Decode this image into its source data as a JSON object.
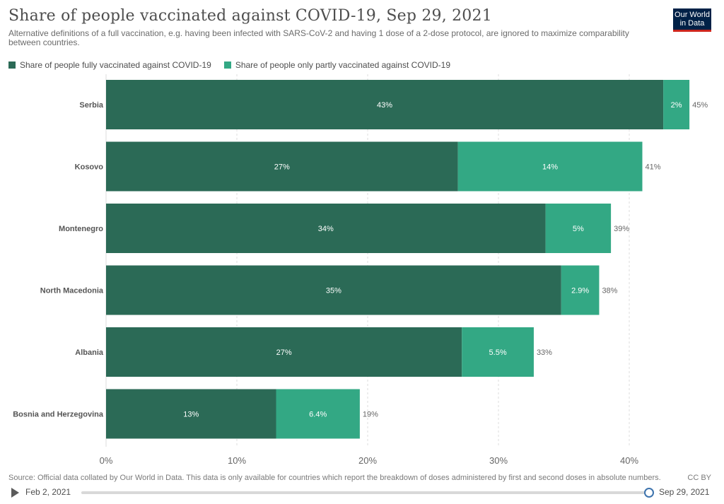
{
  "header": {
    "title": "Share of people vaccinated against COVID-19, Sep 29, 2021",
    "subtitle": "Alternative definitions of a full vaccination, e.g. having been infected with SARS-CoV-2 and having 1 dose of a 2-dose protocol, are ignored to maximize comparability between countries.",
    "logo_line1": "Our World",
    "logo_line2": "in Data"
  },
  "colors": {
    "fully": "#2b6a56",
    "partly": "#33a884",
    "grid": "#dddddd",
    "logo_bg": "#002147",
    "logo_accent": "#ce261e"
  },
  "chart_data": {
    "type": "bar",
    "orientation": "horizontal",
    "stacked": true,
    "title": "Share of people vaccinated against COVID-19, Sep 29, 2021",
    "categories": [
      "Serbia",
      "Kosovo",
      "Montenegro",
      "North Macedonia",
      "Albania",
      "Bosnia and Herzegovina"
    ],
    "series": [
      {
        "name": "Share of people fully vaccinated against COVID-19",
        "values": [
          42.6,
          26.9,
          33.6,
          34.8,
          27.2,
          13.0
        ],
        "labels": [
          "43%",
          "27%",
          "34%",
          "35%",
          "27%",
          "13%"
        ]
      },
      {
        "name": "Share of people only partly vaccinated against COVID-19",
        "values": [
          2.0,
          14.1,
          5.0,
          2.9,
          5.5,
          6.4
        ],
        "labels": [
          "2%",
          "14%",
          "5%",
          "2.9%",
          "5.5%",
          "6.4%"
        ]
      }
    ],
    "totals": [
      "45%",
      "41%",
      "39%",
      "38%",
      "33%",
      "19%"
    ],
    "xlim": [
      0,
      45
    ],
    "xticks": [
      0,
      10,
      20,
      30,
      40
    ],
    "xtick_labels": [
      "0%",
      "10%",
      "20%",
      "30%",
      "40%"
    ],
    "grid": true,
    "legend_position": "top-left"
  },
  "footer": {
    "source": "Source: Official data collated by Our World in Data. This data is only available for countries which report the breakdown of doses administered by first and second doses in absolute numbers.",
    "license": "CC BY"
  },
  "timeline": {
    "start_date": "Feb 2, 2021",
    "end_date": "Sep 29, 2021",
    "position_fraction": 1.0
  }
}
